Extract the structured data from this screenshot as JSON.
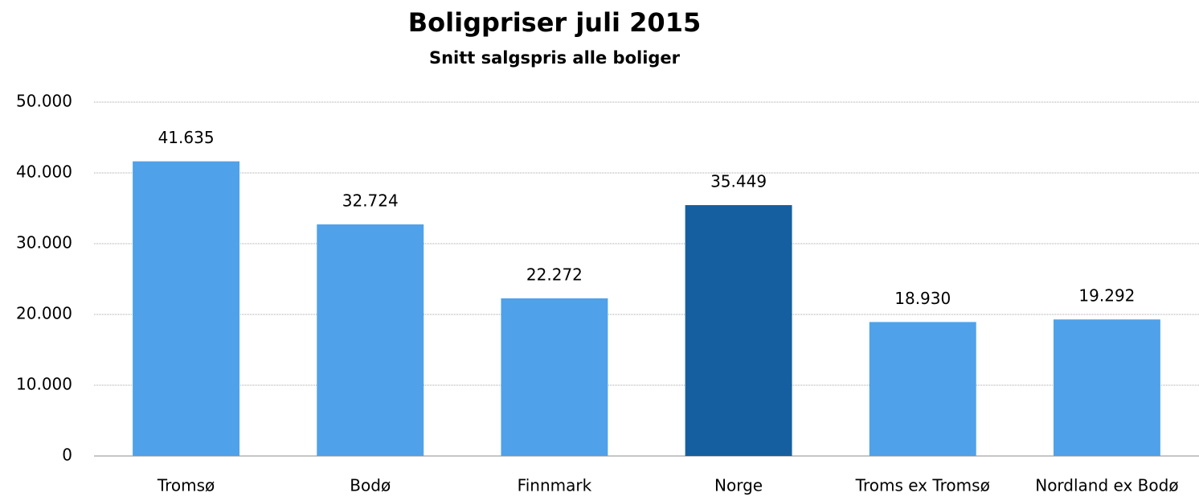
{
  "chart_data": {
    "type": "bar",
    "title": "Boligpriser juli 2015",
    "subtitle": "Snitt salgspris alle boliger",
    "categories": [
      "Tromsø",
      "Bodø",
      "Finnmark",
      "Norge",
      "Troms ex Tromsø",
      "Nordland ex Bodø"
    ],
    "values": [
      41635,
      32724,
      22272,
      35449,
      18930,
      19292
    ],
    "value_labels": [
      "41.635",
      "32.724",
      "22.272",
      "35.449",
      "18.930",
      "19.292"
    ],
    "colors": [
      "#4fa1e9",
      "#4fa1e9",
      "#4fa1e9",
      "#155fa0",
      "#4fa1e9",
      "#4fa1e9"
    ],
    "ylim": [
      0,
      50000
    ],
    "yticks": [
      0,
      {
        "value": 10000,
        "label": "10.000"
      },
      {
        "value": 20000,
        "label": "20.000"
      },
      {
        "value": 30000,
        "label": "30.000"
      },
      {
        "value": 40000,
        "label": "40.000"
      },
      {
        "value": 50000,
        "label": "50.000"
      }
    ],
    "grid": true
  }
}
